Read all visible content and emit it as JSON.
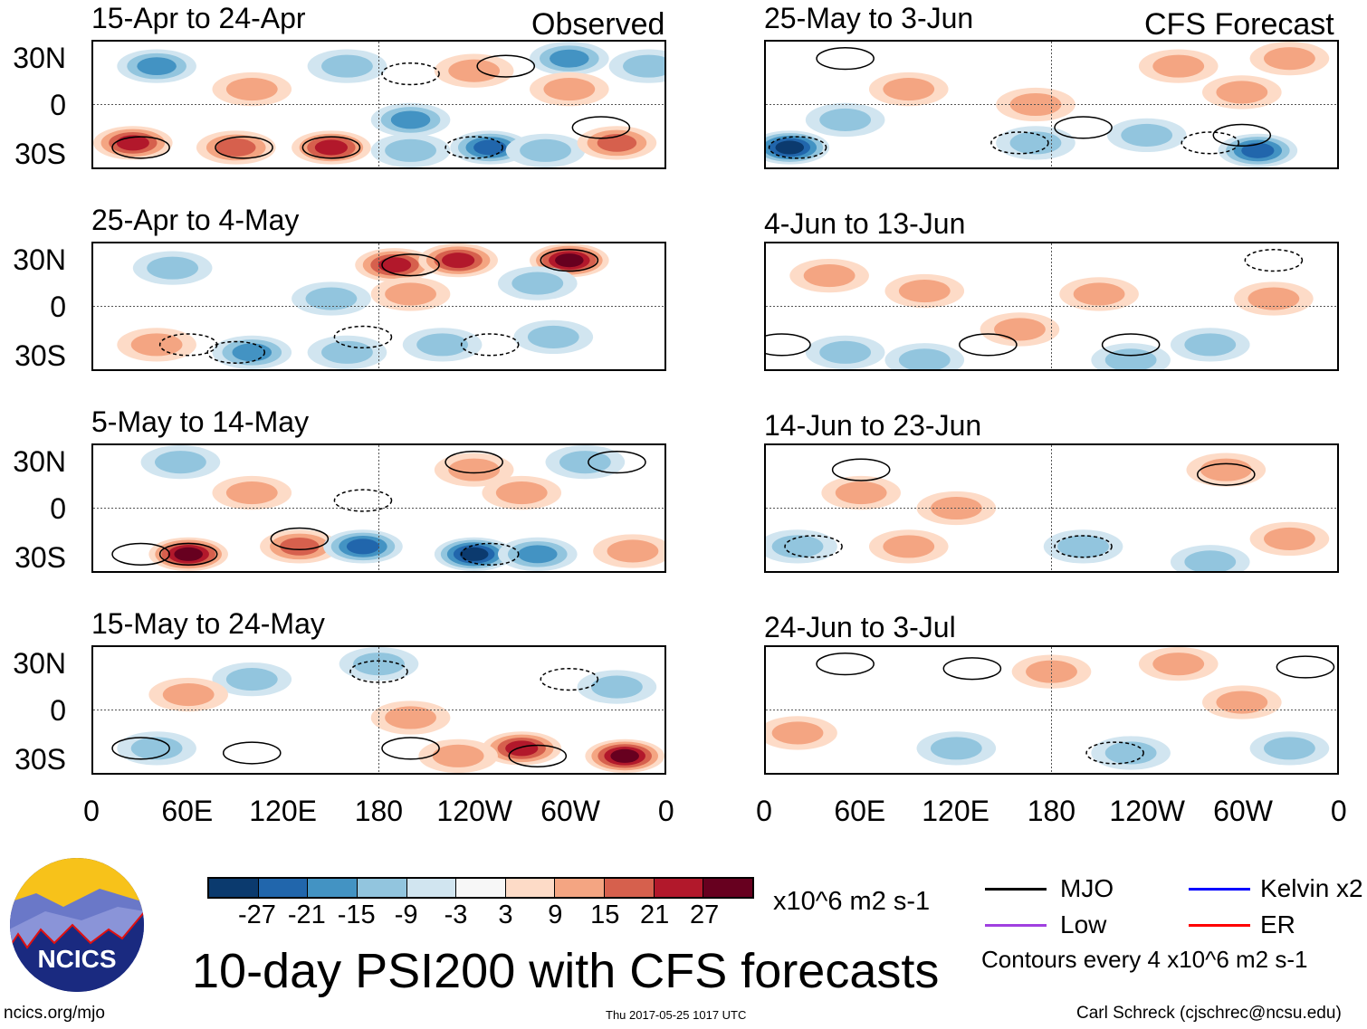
{
  "header": {
    "left_label": "Observed",
    "right_label": "CFS Forecast"
  },
  "chart_data": [
    {
      "type": "heatmap",
      "title": "15-Apr to 24-Apr",
      "column": "Observed",
      "blobs": [
        [
          40,
          25,
          -15
        ],
        [
          100,
          10,
          9
        ],
        [
          160,
          25,
          -9
        ],
        [
          240,
          22,
          12
        ],
        [
          300,
          30,
          -15
        ],
        [
          350,
          25,
          -12
        ],
        [
          25,
          -25,
          21
        ],
        [
          90,
          -28,
          15
        ],
        [
          150,
          -28,
          21
        ],
        [
          200,
          -10,
          -15
        ],
        [
          250,
          -28,
          -21
        ],
        [
          285,
          -30,
          -9
        ],
        [
          330,
          -25,
          15
        ],
        [
          200,
          -30,
          -9
        ],
        [
          300,
          10,
          12
        ]
      ],
      "contours": [
        [
          95,
          -28,
          1
        ],
        [
          30,
          -28,
          1
        ],
        [
          150,
          -28,
          1
        ],
        [
          200,
          20,
          -1
        ],
        [
          260,
          25,
          1
        ],
        [
          320,
          -15,
          1
        ],
        [
          240,
          -28,
          -1
        ]
      ]
    },
    {
      "type": "heatmap",
      "title": "25-Apr to 4-May",
      "column": "Observed",
      "blobs": [
        [
          190,
          27,
          21
        ],
        [
          230,
          30,
          21
        ],
        [
          300,
          30,
          27
        ],
        [
          50,
          25,
          -9
        ],
        [
          200,
          8,
          9
        ],
        [
          280,
          15,
          -9
        ],
        [
          100,
          -30,
          -15
        ],
        [
          160,
          -30,
          -9
        ],
        [
          220,
          -25,
          -12
        ],
        [
          290,
          -20,
          -9
        ],
        [
          40,
          -25,
          9
        ],
        [
          150,
          5,
          -9
        ]
      ],
      "contours": [
        [
          200,
          27,
          1
        ],
        [
          300,
          30,
          1
        ],
        [
          90,
          -30,
          -1
        ],
        [
          170,
          -20,
          -1
        ],
        [
          250,
          -25,
          -1
        ],
        [
          60,
          -25,
          -1
        ]
      ]
    },
    {
      "type": "heatmap",
      "title": "5-May to 14-May",
      "column": "Observed",
      "blobs": [
        [
          55,
          30,
          -12
        ],
        [
          240,
          25,
          12
        ],
        [
          270,
          10,
          12
        ],
        [
          60,
          -30,
          27
        ],
        [
          130,
          -25,
          15
        ],
        [
          170,
          -25,
          -21
        ],
        [
          240,
          -30,
          -27
        ],
        [
          280,
          -30,
          -15
        ],
        [
          340,
          -28,
          9
        ],
        [
          100,
          10,
          9
        ],
        [
          310,
          30,
          -9
        ]
      ],
      "contours": [
        [
          60,
          -30,
          1
        ],
        [
          130,
          -20,
          1
        ],
        [
          30,
          -30,
          1
        ],
        [
          240,
          30,
          1
        ],
        [
          330,
          30,
          1
        ],
        [
          250,
          -30,
          -1
        ],
        [
          170,
          5,
          -1
        ]
      ]
    },
    {
      "type": "heatmap",
      "title": "15-May to 24-May",
      "column": "Observed",
      "blobs": [
        [
          270,
          -25,
          21
        ],
        [
          335,
          -30,
          27
        ],
        [
          200,
          -5,
          9
        ],
        [
          100,
          20,
          -9
        ],
        [
          330,
          15,
          -9
        ],
        [
          40,
          -25,
          -9
        ],
        [
          180,
          30,
          -9
        ],
        [
          230,
          -30,
          9
        ],
        [
          60,
          10,
          9
        ]
      ],
      "contours": [
        [
          100,
          -28,
          1
        ],
        [
          200,
          -25,
          1
        ],
        [
          30,
          -25,
          1
        ],
        [
          280,
          -30,
          1
        ],
        [
          180,
          25,
          -1
        ],
        [
          300,
          20,
          -1
        ]
      ]
    },
    {
      "type": "heatmap",
      "title": "25-May to 3-Jun",
      "column": "CFS Forecast",
      "blobs": [
        [
          15,
          -28,
          -27
        ],
        [
          310,
          -30,
          -21
        ],
        [
          170,
          -25,
          -9
        ],
        [
          170,
          0,
          9
        ],
        [
          300,
          8,
          9
        ],
        [
          90,
          10,
          9
        ],
        [
          260,
          25,
          9
        ],
        [
          330,
          30,
          9
        ],
        [
          50,
          -10,
          -9
        ],
        [
          240,
          -20,
          -9
        ]
      ],
      "contours": [
        [
          20,
          -28,
          -1
        ],
        [
          200,
          -15,
          1
        ],
        [
          300,
          -20,
          1
        ],
        [
          50,
          30,
          1
        ],
        [
          160,
          -25,
          -1
        ],
        [
          280,
          -25,
          -1
        ]
      ]
    },
    {
      "type": "heatmap",
      "title": "4-Jun to 13-Jun",
      "column": "CFS Forecast",
      "blobs": [
        [
          320,
          5,
          12
        ],
        [
          210,
          8,
          9
        ],
        [
          160,
          -15,
          9
        ],
        [
          50,
          -30,
          -9
        ],
        [
          230,
          -35,
          -9
        ],
        [
          280,
          -25,
          -9
        ],
        [
          100,
          -35,
          -9
        ],
        [
          40,
          20,
          9
        ],
        [
          100,
          10,
          9
        ]
      ],
      "contours": [
        [
          230,
          -25,
          1
        ],
        [
          140,
          -25,
          1
        ],
        [
          10,
          -25,
          1
        ],
        [
          320,
          30,
          -1
        ]
      ]
    },
    {
      "type": "heatmap",
      "title": "14-Jun to 23-Jun",
      "column": "CFS Forecast",
      "blobs": [
        [
          290,
          25,
          12
        ],
        [
          60,
          10,
          9
        ],
        [
          90,
          -25,
          9
        ],
        [
          200,
          -25,
          -9
        ],
        [
          280,
          -35,
          -9
        ],
        [
          20,
          -25,
          -9
        ],
        [
          330,
          -20,
          9
        ],
        [
          120,
          0,
          9
        ]
      ],
      "contours": [
        [
          290,
          22,
          1
        ],
        [
          60,
          25,
          1
        ],
        [
          200,
          -25,
          -1
        ],
        [
          30,
          -25,
          -1
        ]
      ]
    },
    {
      "type": "heatmap",
      "title": "24-Jun to 3-Jul",
      "column": "CFS Forecast",
      "blobs": [
        [
          180,
          25,
          9
        ],
        [
          260,
          30,
          9
        ],
        [
          230,
          -28,
          -9
        ],
        [
          330,
          -25,
          -9
        ],
        [
          120,
          -25,
          -9
        ],
        [
          20,
          -15,
          9
        ],
        [
          300,
          5,
          9
        ]
      ],
      "contours": [
        [
          130,
          27,
          1
        ],
        [
          50,
          30,
          1
        ],
        [
          220,
          -28,
          -1
        ],
        [
          340,
          28,
          1
        ]
      ]
    }
  ],
  "axes": {
    "y_ticks": [
      "30N",
      "0",
      "30S"
    ],
    "x_ticks": [
      "0",
      "60E",
      "120E",
      "180",
      "120W",
      "60W",
      "0"
    ]
  },
  "colorbar": {
    "labels": [
      "-27",
      "-21",
      "-15",
      "-9",
      "-3",
      "3",
      "9",
      "15",
      "21",
      "27"
    ],
    "colors": [
      "#0b3a6e",
      "#2166ac",
      "#4393c3",
      "#92c5de",
      "#d1e5f0",
      "#f7f7f7",
      "#fddbc7",
      "#f4a582",
      "#d6604d",
      "#b2182b",
      "#67001f"
    ],
    "units": "x10^6 m2 s-1"
  },
  "legend": {
    "mjo": "MJO",
    "kelvin": "Kelvin x2",
    "low": "Low",
    "er": "ER",
    "contours_note": "Contours every 4 x10^6 m2 s-1",
    "colors": {
      "mjo": "#000000",
      "kelvin": "#0000ff",
      "low": "#a040e0",
      "er": "#ff0000"
    }
  },
  "footer": {
    "title": "10-day PSI200 with CFS forecasts",
    "url": "ncics.org/mjo",
    "timestamp": "Thu 2017-05-25 1017 UTC",
    "author": "Carl Schreck (cjschrec@ncsu.edu)",
    "logo_text": "NCICS"
  }
}
